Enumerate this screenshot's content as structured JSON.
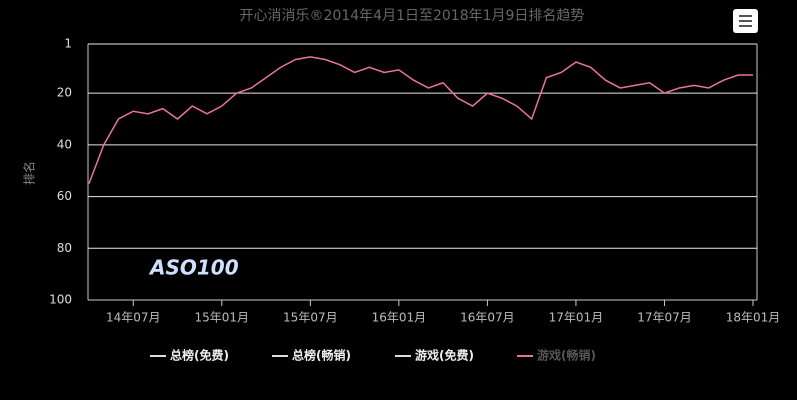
{
  "chart_data": {
    "type": "line",
    "title": "开心消消乐®2014年4月1日至2018年1月9日排名趋势",
    "y_label": "排名",
    "watermark": "ASO100",
    "x": [
      "2014-04",
      "2014-05",
      "2014-06",
      "2014-07",
      "2014-08",
      "2014-09",
      "2014-10",
      "2014-11",
      "2014-12",
      "2015-01",
      "2015-02",
      "2015-03",
      "2015-04",
      "2015-05",
      "2015-06",
      "2015-07",
      "2015-08",
      "2015-09",
      "2015-10",
      "2015-11",
      "2015-12",
      "2016-01",
      "2016-02",
      "2016-03",
      "2016-04",
      "2016-05",
      "2016-06",
      "2016-07",
      "2016-08",
      "2016-09",
      "2016-10",
      "2016-11",
      "2016-12",
      "2017-01",
      "2017-02",
      "2017-03",
      "2017-04",
      "2017-05",
      "2017-06",
      "2017-07",
      "2017-08",
      "2017-09",
      "2017-10",
      "2017-11",
      "2017-12",
      "2018-01"
    ],
    "series": [
      {
        "name": "总榜(免费)",
        "color": "#dddddd",
        "values": [
          null,
          null,
          null,
          null,
          null,
          null,
          null,
          null,
          null,
          null,
          null,
          null,
          null,
          null,
          null,
          null,
          null,
          null,
          null,
          null,
          null,
          null,
          null,
          null,
          null,
          null,
          null,
          null,
          null,
          null,
          null,
          null,
          null,
          null,
          null,
          null,
          null,
          null,
          null,
          null,
          null,
          null,
          null,
          null,
          null,
          null
        ]
      },
      {
        "name": "总榜(畅销)",
        "color": "#dddddd",
        "values": [
          null,
          null,
          null,
          null,
          null,
          null,
          null,
          null,
          null,
          null,
          null,
          null,
          null,
          null,
          null,
          null,
          null,
          null,
          null,
          null,
          null,
          null,
          null,
          null,
          null,
          null,
          null,
          null,
          null,
          null,
          null,
          null,
          null,
          null,
          null,
          null,
          null,
          null,
          null,
          null,
          null,
          null,
          null,
          null,
          null,
          null
        ]
      },
      {
        "name": "游戏(免费)",
        "color": "#dddddd",
        "values": [
          null,
          null,
          null,
          null,
          null,
          null,
          null,
          null,
          null,
          null,
          null,
          null,
          null,
          null,
          null,
          null,
          null,
          null,
          null,
          null,
          null,
          null,
          null,
          null,
          null,
          null,
          null,
          null,
          null,
          null,
          null,
          null,
          null,
          null,
          null,
          null,
          null,
          null,
          null,
          null,
          null,
          null,
          null,
          null,
          null,
          null
        ]
      },
      {
        "name": "游戏(畅销)",
        "color": "#e8739e",
        "values": [
          55,
          40,
          30,
          27,
          28,
          26,
          30,
          25,
          28,
          25,
          20,
          18,
          14,
          10,
          7,
          6,
          7,
          9,
          12,
          10,
          12,
          11,
          15,
          18,
          16,
          22,
          25,
          20,
          22,
          25,
          30,
          14,
          12,
          8,
          10,
          15,
          18,
          17,
          16,
          20,
          18,
          17,
          18,
          15,
          13,
          13
        ]
      }
    ],
    "xlim": [
      "2014-04",
      "2018-01"
    ],
    "xticks": [
      {
        "value": "2014-07",
        "label": "14年07月"
      },
      {
        "value": "2015-01",
        "label": "15年01月"
      },
      {
        "value": "2015-07",
        "label": "15年07月"
      },
      {
        "value": "2016-01",
        "label": "16年01月"
      },
      {
        "value": "2016-07",
        "label": "16年07月"
      },
      {
        "value": "2017-01",
        "label": "17年01月"
      },
      {
        "value": "2017-07",
        "label": "17年07月"
      },
      {
        "value": "2018-01",
        "label": "18年01月"
      }
    ],
    "ylim": [
      1,
      100
    ],
    "y_reversed": true,
    "yticks": [
      1,
      20,
      40,
      60,
      80,
      100
    ],
    "grid": true
  }
}
